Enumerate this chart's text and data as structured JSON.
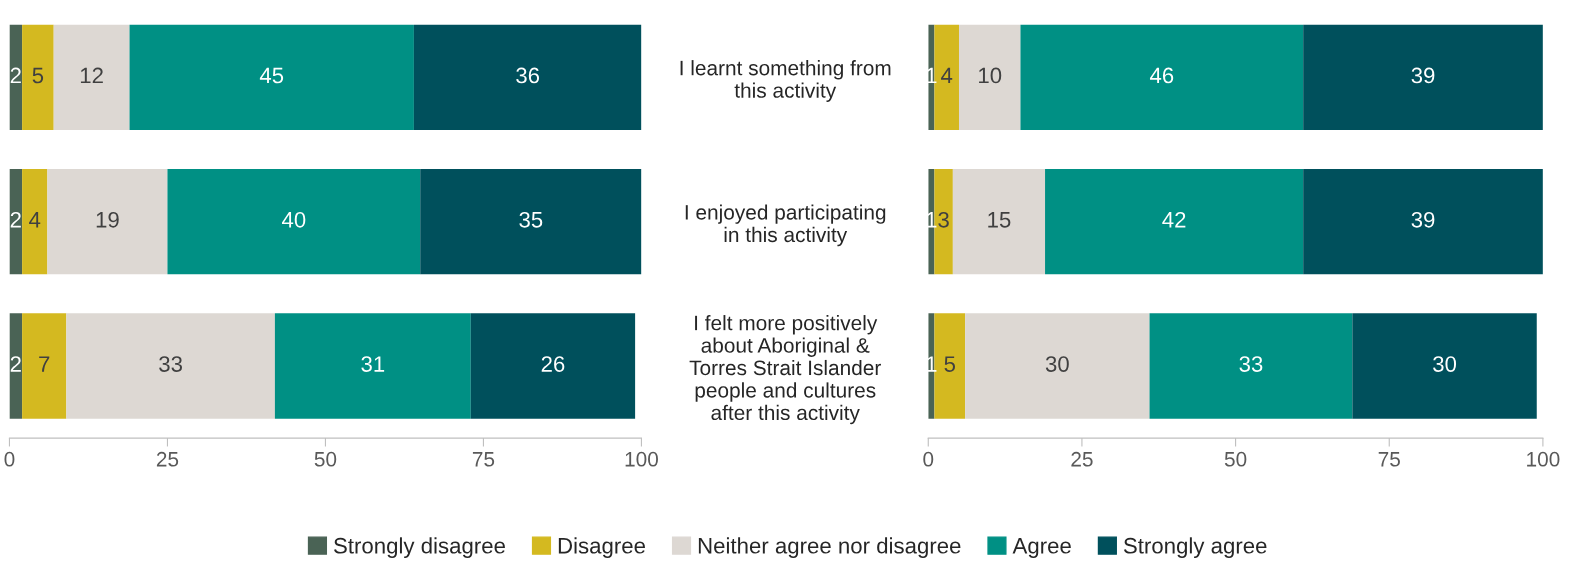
{
  "chart_data": [
    {
      "type": "bar",
      "orientation": "horizontal",
      "stacked": true,
      "data_labels": true,
      "tick_labels": "x",
      "legend": "bottom",
      "grid": false,
      "categories": [
        null,
        null,
        null
      ],
      "xlim": [
        0,
        100
      ],
      "xticks": [
        0,
        25,
        50,
        75,
        100
      ],
      "series": [
        {
          "name": "Strongly disagree",
          "color": "#4a6355",
          "values": [
            2,
            2,
            2
          ]
        },
        {
          "name": "Disagree",
          "color": "#d4b920",
          "values": [
            5,
            4,
            7
          ]
        },
        {
          "name": "Neither agree nor disagree",
          "color": "#ddd8d3",
          "values": [
            12,
            19,
            33
          ]
        },
        {
          "name": "Agree",
          "color": "#009084",
          "values": [
            45,
            40,
            31
          ]
        },
        {
          "name": "Strongly agree",
          "color": "#00505c",
          "values": [
            36,
            35,
            26
          ]
        }
      ]
    },
    {
      "type": "bar",
      "orientation": "horizontal",
      "stacked": true,
      "data_labels": true,
      "grid": false,
      "categories": [
        "I learnt something from\nthis activity",
        "I enjoyed participating\nin this activity",
        "I felt more positively\nabout Aboriginal &\nTorres Strait Islander\npeople and cultures\nafter this activity"
      ],
      "xlim": [
        0,
        100
      ],
      "xticks": [
        0,
        25,
        50,
        75,
        100
      ],
      "series": [
        {
          "color": "#4a6355",
          "values": [
            1,
            1,
            1
          ]
        },
        {
          "color": "#d4b920",
          "values": [
            4,
            3,
            5
          ]
        },
        {
          "color": "#ddd8d3",
          "values": [
            10,
            15,
            30
          ]
        },
        {
          "color": "#009084",
          "values": [
            46,
            42,
            33
          ]
        },
        {
          "color": "#00505c",
          "values": [
            39,
            39,
            30
          ]
        }
      ]
    }
  ]
}
